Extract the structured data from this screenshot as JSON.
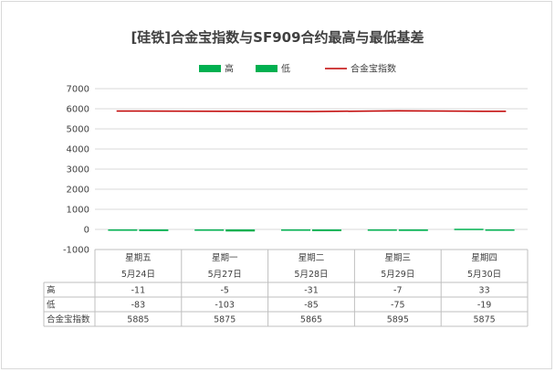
{
  "chart_data": {
    "type": "bar",
    "title": "[硅铁]合金宝指数与SF909合约最高与最低基差",
    "categories": [
      "星期五",
      "星期一",
      "星期二",
      "星期三",
      "星期四"
    ],
    "dates": [
      "5月24日",
      "5月27日",
      "5月28日",
      "5月29日",
      "5月30日"
    ],
    "series": [
      {
        "name": "高",
        "kind": "bar",
        "color": "#00b050",
        "values": [
          -11,
          -5,
          -31,
          -7,
          33
        ]
      },
      {
        "name": "低",
        "kind": "bar",
        "color": "#00b050",
        "values": [
          -83,
          -103,
          -85,
          -75,
          -19
        ]
      },
      {
        "name": "合金宝指数",
        "kind": "line",
        "color": "#c00000",
        "values": [
          5885,
          5875,
          5865,
          5895,
          5875
        ]
      }
    ],
    "ylim": [
      -1000,
      7000
    ],
    "yticks": [
      -1000,
      0,
      1000,
      2000,
      3000,
      4000,
      5000,
      6000,
      7000
    ],
    "grid": true,
    "legend": "top",
    "data_table": true
  }
}
